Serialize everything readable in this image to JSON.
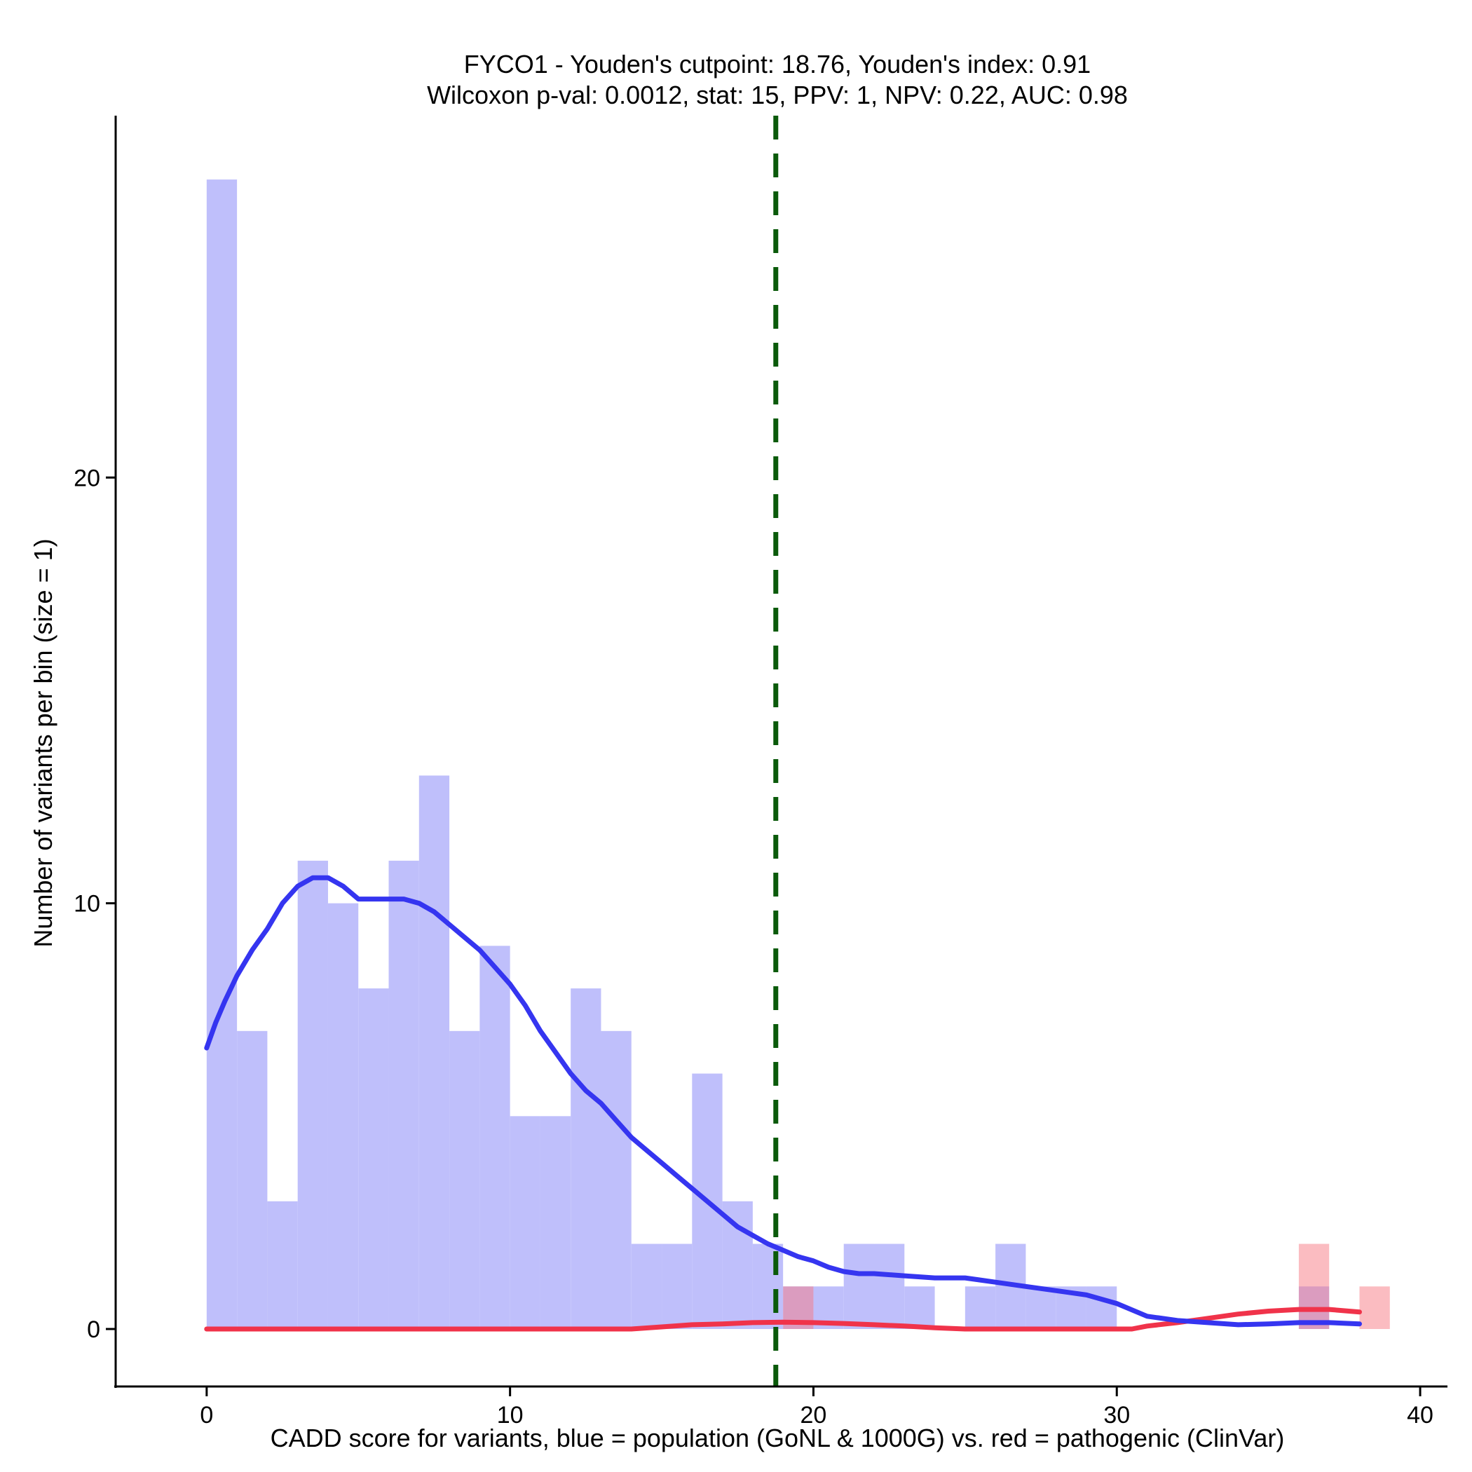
{
  "chart_data": {
    "type": "histogram",
    "title_line1": "FYCO1 - Youden's cutpoint: 18.76, Youden's index: 0.91",
    "title_line2": "Wilcoxon p-val: 0.0012, stat: 15, PPV: 1, NPV: 0.22, AUC: 0.98",
    "xlabel": "CADD score for variants, blue = population (GoNL & 1000G) vs. red = pathogenic (ClinVar)",
    "ylabel": "Number of variants per bin (size = 1)",
    "xlim": [
      -3,
      40.9
    ],
    "ylim": [
      -1.35,
      28.5
    ],
    "x_ticks": [
      0,
      10,
      20,
      30,
      40
    ],
    "x_tick_labels": [
      "0",
      "10",
      "20",
      "30",
      "40"
    ],
    "y_ticks": [
      0,
      10,
      20
    ],
    "y_tick_labels": [
      "0",
      "10",
      "20"
    ],
    "cutpoint": 18.76,
    "colors": {
      "population_fill": "#bfbffb",
      "population_line": "#3535f0",
      "pathogenic_fill": "#fcbfc1",
      "pathogenic_line": "#f0334a",
      "cutpoint_line": "#0a5a0a"
    },
    "series": [
      {
        "name": "population (GoNL & 1000G)",
        "bins": [
          {
            "x0": 0,
            "x1": 1,
            "count": 27
          },
          {
            "x0": 1,
            "x1": 2,
            "count": 7
          },
          {
            "x0": 2,
            "x1": 3,
            "count": 3
          },
          {
            "x0": 3,
            "x1": 4,
            "count": 11
          },
          {
            "x0": 4,
            "x1": 5,
            "count": 10
          },
          {
            "x0": 5,
            "x1": 6,
            "count": 8
          },
          {
            "x0": 6,
            "x1": 7,
            "count": 11
          },
          {
            "x0": 7,
            "x1": 8,
            "count": 13
          },
          {
            "x0": 8,
            "x1": 9,
            "count": 7
          },
          {
            "x0": 9,
            "x1": 10,
            "count": 9
          },
          {
            "x0": 10,
            "x1": 11,
            "count": 5
          },
          {
            "x0": 11,
            "x1": 12,
            "count": 5
          },
          {
            "x0": 12,
            "x1": 13,
            "count": 8
          },
          {
            "x0": 13,
            "x1": 14,
            "count": 7
          },
          {
            "x0": 14,
            "x1": 15,
            "count": 2
          },
          {
            "x0": 15,
            "x1": 16,
            "count": 2
          },
          {
            "x0": 16,
            "x1": 17,
            "count": 6
          },
          {
            "x0": 17,
            "x1": 18,
            "count": 3
          },
          {
            "x0": 18,
            "x1": 19,
            "count": 2
          },
          {
            "x0": 19,
            "x1": 20,
            "count": 1
          },
          {
            "x0": 20,
            "x1": 21,
            "count": 1
          },
          {
            "x0": 21,
            "x1": 22,
            "count": 2
          },
          {
            "x0": 22,
            "x1": 23,
            "count": 2
          },
          {
            "x0": 23,
            "x1": 24,
            "count": 1
          },
          {
            "x0": 25,
            "x1": 26,
            "count": 1
          },
          {
            "x0": 26,
            "x1": 27,
            "count": 2
          },
          {
            "x0": 27,
            "x1": 28,
            "count": 1
          },
          {
            "x0": 28,
            "x1": 29,
            "count": 1
          },
          {
            "x0": 29,
            "x1": 30,
            "count": 1
          },
          {
            "x0": 36,
            "x1": 37,
            "count": 1
          }
        ],
        "density_curve": [
          [
            0,
            6.6
          ],
          [
            0.3,
            7.2
          ],
          [
            0.6,
            7.7
          ],
          [
            1,
            8.3
          ],
          [
            1.5,
            8.9
          ],
          [
            2,
            9.4
          ],
          [
            2.5,
            10.0
          ],
          [
            3,
            10.4
          ],
          [
            3.5,
            10.6
          ],
          [
            4,
            10.6
          ],
          [
            4.5,
            10.4
          ],
          [
            5,
            10.1
          ],
          [
            5.5,
            10.1
          ],
          [
            6,
            10.1
          ],
          [
            6.5,
            10.1
          ],
          [
            7,
            10.0
          ],
          [
            7.5,
            9.8
          ],
          [
            8,
            9.5
          ],
          [
            8.5,
            9.2
          ],
          [
            9,
            8.9
          ],
          [
            9.5,
            8.5
          ],
          [
            10,
            8.1
          ],
          [
            10.5,
            7.6
          ],
          [
            11,
            7.0
          ],
          [
            11.5,
            6.5
          ],
          [
            12,
            6.0
          ],
          [
            12.5,
            5.6
          ],
          [
            13,
            5.3
          ],
          [
            13.5,
            4.9
          ],
          [
            14,
            4.5
          ],
          [
            14.5,
            4.2
          ],
          [
            15,
            3.9
          ],
          [
            15.5,
            3.6
          ],
          [
            16,
            3.3
          ],
          [
            16.5,
            3.0
          ],
          [
            17,
            2.7
          ],
          [
            17.5,
            2.4
          ],
          [
            18,
            2.2
          ],
          [
            18.5,
            2.0
          ],
          [
            19,
            1.85
          ],
          [
            19.5,
            1.7
          ],
          [
            20,
            1.6
          ],
          [
            20.5,
            1.45
          ],
          [
            21,
            1.35
          ],
          [
            21.5,
            1.3
          ],
          [
            22,
            1.3
          ],
          [
            23,
            1.25
          ],
          [
            24,
            1.2
          ],
          [
            25,
            1.2
          ],
          [
            26,
            1.1
          ],
          [
            27,
            1.0
          ],
          [
            28,
            0.9
          ],
          [
            29,
            0.8
          ],
          [
            30,
            0.6
          ],
          [
            31,
            0.3
          ],
          [
            32,
            0.2
          ],
          [
            33,
            0.15
          ],
          [
            34,
            0.1
          ],
          [
            35,
            0.12
          ],
          [
            36,
            0.15
          ],
          [
            37,
            0.15
          ],
          [
            38,
            0.12
          ]
        ]
      },
      {
        "name": "pathogenic (ClinVar)",
        "bins": [
          {
            "x0": 19,
            "x1": 20,
            "count": 1
          },
          {
            "x0": 36,
            "x1": 37,
            "count": 2
          },
          {
            "x0": 38,
            "x1": 39,
            "count": 1
          }
        ],
        "density_curve": [
          [
            0,
            0.0
          ],
          [
            14,
            0.0
          ],
          [
            15,
            0.05
          ],
          [
            16,
            0.1
          ],
          [
            17,
            0.12
          ],
          [
            18,
            0.15
          ],
          [
            19,
            0.16
          ],
          [
            20,
            0.15
          ],
          [
            21,
            0.13
          ],
          [
            22,
            0.1
          ],
          [
            23,
            0.07
          ],
          [
            24,
            0.03
          ],
          [
            25,
            0.0
          ],
          [
            30,
            0.0
          ],
          [
            30.5,
            0.0
          ],
          [
            31,
            0.07
          ],
          [
            32,
            0.15
          ],
          [
            33,
            0.25
          ],
          [
            34,
            0.35
          ],
          [
            35,
            0.42
          ],
          [
            36,
            0.46
          ],
          [
            37,
            0.46
          ],
          [
            38,
            0.4
          ]
        ]
      }
    ]
  }
}
